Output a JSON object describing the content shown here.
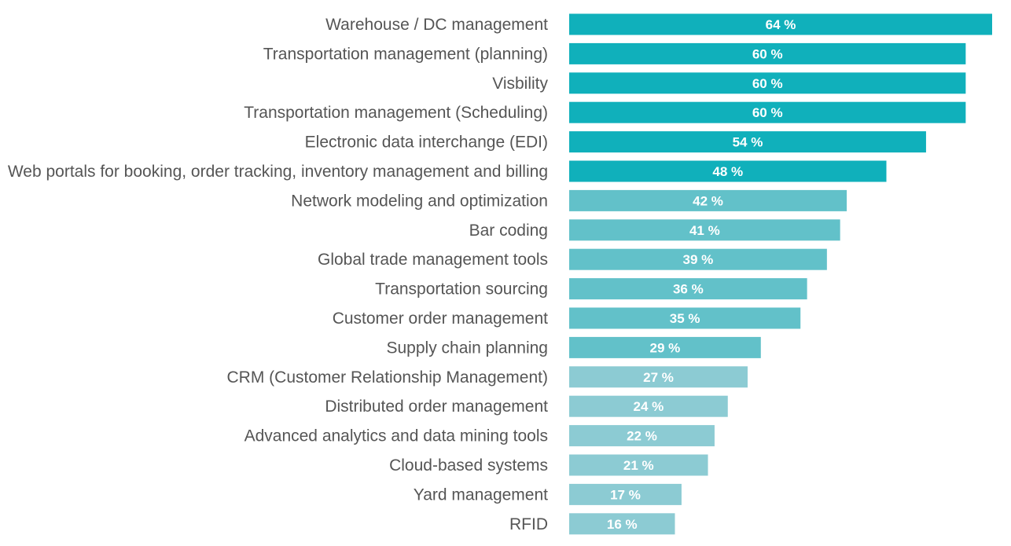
{
  "chart_data": {
    "type": "bar",
    "orientation": "horizontal",
    "title": "",
    "xlabel": "",
    "ylabel": "",
    "value_suffix": " %",
    "xlim": [
      0,
      64
    ],
    "grid": false,
    "legend": "none",
    "categories": [
      "Warehouse / DC management",
      "Transportation management (planning)",
      "Visbility",
      "Transportation management (Scheduling)",
      "Electronic data interchange (EDI)",
      "Web portals for booking, order tracking, inventory management and billing",
      "Network modeling and optimization",
      "Bar coding",
      "Global trade management tools",
      "Transportation sourcing",
      "Customer order management",
      "Supply chain planning",
      "CRM (Customer Relationship Management)",
      "Distributed order management",
      "Advanced analytics and data mining tools",
      "Cloud-based systems",
      "Yard management",
      "RFID"
    ],
    "values": [
      64,
      60,
      60,
      60,
      54,
      48,
      42,
      41,
      39,
      36,
      35,
      29,
      27,
      24,
      22,
      21,
      17,
      16
    ],
    "color_tiers": [
      {
        "min": 45,
        "color": "#10b0bb"
      },
      {
        "min": 28,
        "color": "#62c1c9"
      },
      {
        "min": 0,
        "color": "#8ccbd3"
      }
    ]
  }
}
